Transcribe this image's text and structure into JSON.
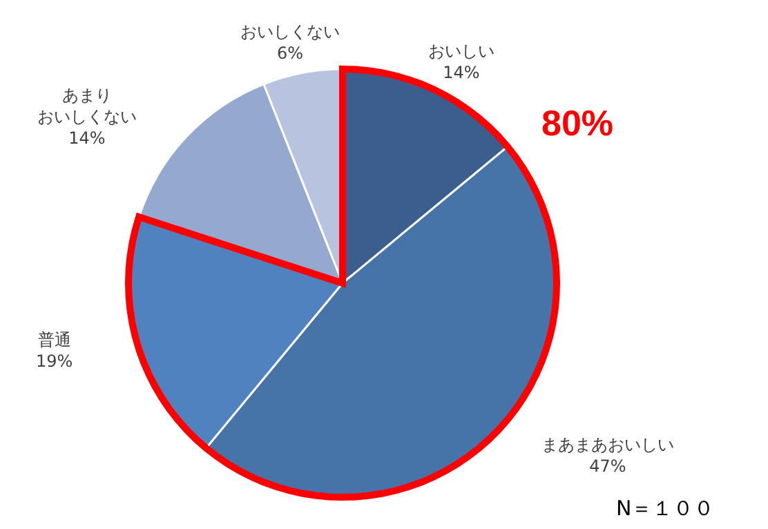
{
  "chart_data": {
    "type": "pie",
    "categories": [
      "おいしい",
      "まあまあおいしい",
      "普通",
      "あまりおいしくない",
      "おいしくない"
    ],
    "values": [
      14,
      47,
      19,
      14,
      6
    ],
    "colors": [
      "#3b5e8f",
      "#4674a9",
      "#5082bf",
      "#95a9d0",
      "#b8c4df"
    ],
    "value_labels": [
      "14%",
      "47%",
      "19%",
      "14%",
      "6%"
    ],
    "legend": false,
    "annotations": [
      "80%",
      "N＝１００"
    ]
  }
}
